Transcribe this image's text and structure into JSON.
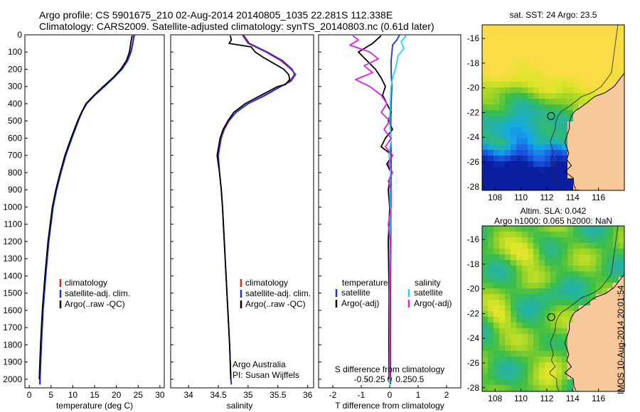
{
  "title": {
    "line1": "Argo profile: CS 5901675_210 02-Aug-2014 20140805_1035 22.281S 112.338E",
    "line2": "Climatology: CARS2009. Satellite-adjusted climatology: synTS_20140803.nc (0.61d later)"
  },
  "depth_ticks": [
    0,
    100,
    200,
    300,
    400,
    500,
    600,
    700,
    800,
    900,
    1000,
    1100,
    1200,
    1300,
    1400,
    1500,
    1600,
    1700,
    1800,
    1900,
    2000
  ],
  "colors": {
    "climatology": "#e02020",
    "satellite": "#1a2fe0",
    "argo": "#000000",
    "cyan": "#22d8e8",
    "magenta": "#e020e0",
    "land": "#f7c99a"
  },
  "chart_data": [
    {
      "type": "line",
      "panel": "temperature",
      "xlabel": "temperature (deg C)",
      "xlim": [
        -1,
        31
      ],
      "xticks": [
        0,
        5,
        10,
        15,
        20,
        25,
        30
      ],
      "ylim": [
        2050,
        0
      ],
      "legend": [
        "climatology",
        "satellite-adj. clim.",
        "Argo(..raw -QC)"
      ],
      "series": [
        {
          "name": "climatology",
          "color": "#e02020",
          "depth": [
            0,
            20,
            50,
            100,
            150,
            200,
            250,
            300,
            350,
            400,
            450,
            500,
            600,
            700,
            800,
            900,
            1000,
            1200,
            1400,
            1600,
            1800,
            2000,
            2030
          ],
          "values": [
            23.9,
            23.9,
            23.7,
            23.3,
            22.5,
            21.2,
            19.3,
            17.2,
            15.0,
            13.1,
            12.1,
            11.2,
            9.7,
            8.3,
            7.2,
            6.2,
            5.4,
            4.4,
            3.7,
            3.1,
            2.7,
            2.4,
            2.4
          ]
        },
        {
          "name": "satellite-adj. clim.",
          "color": "#1a2fe0",
          "depth": [
            0,
            20,
            50,
            100,
            150,
            200,
            250,
            300,
            350,
            400,
            450,
            500,
            600,
            700,
            800,
            900,
            1000,
            1200,
            1400,
            1600,
            1800,
            2000,
            2030
          ],
          "values": [
            24.2,
            24.0,
            23.8,
            23.4,
            22.6,
            21.3,
            19.4,
            17.3,
            15.1,
            13.2,
            12.1,
            11.3,
            9.8,
            8.4,
            7.3,
            6.3,
            5.5,
            4.5,
            3.8,
            3.2,
            2.8,
            2.5,
            2.5
          ]
        },
        {
          "name": "Argo(..raw -QC)",
          "color": "#000000",
          "depth": [
            5,
            20,
            50,
            100,
            150,
            200,
            250,
            300,
            350,
            400,
            450,
            500,
            600,
            700,
            800,
            900,
            1000,
            1200,
            1400,
            1600,
            1800,
            2000
          ],
          "values": [
            23.6,
            23.5,
            23.3,
            23.0,
            22.3,
            21.0,
            19.2,
            17.0,
            14.9,
            13.0,
            12.0,
            11.1,
            9.6,
            8.2,
            7.1,
            6.1,
            5.3,
            4.3,
            3.6,
            3.0,
            2.6,
            2.3
          ]
        }
      ]
    },
    {
      "type": "line",
      "panel": "salinity",
      "xlabel": "salinity",
      "xlim": [
        33.7,
        36.1
      ],
      "xticks": [
        34,
        34.5,
        35,
        35.5,
        36
      ],
      "ylim": [
        2050,
        0
      ],
      "legend": [
        "climatology",
        "satellite-adj. clim.",
        "Argo(..raw -QC)"
      ],
      "notes": [
        "Argo Australia",
        "PI: Susan Wijffels"
      ],
      "series": [
        {
          "name": "climatology",
          "color": "#e02020",
          "depth": [
            0,
            50,
            100,
            150,
            200,
            230,
            270,
            300,
            350,
            400,
            450,
            500,
            550,
            600,
            700,
            800,
            900,
            1000,
            1200,
            1400,
            1600,
            1800,
            2000,
            2030
          ],
          "values": [
            34.9,
            35.0,
            35.3,
            35.55,
            35.72,
            35.8,
            35.72,
            35.55,
            35.3,
            35.0,
            34.8,
            34.68,
            34.6,
            34.55,
            34.5,
            34.52,
            34.55,
            34.57,
            34.6,
            34.63,
            34.66,
            34.69,
            34.71,
            34.72
          ]
        },
        {
          "name": "satellite-adj. clim.",
          "color": "#1a2fe0",
          "depth": [
            0,
            50,
            100,
            150,
            200,
            230,
            270,
            300,
            350,
            400,
            450,
            500,
            550,
            600,
            700,
            800,
            900,
            1000,
            1200,
            1400,
            1600,
            1800,
            2000,
            2030
          ],
          "values": [
            34.92,
            35.02,
            35.32,
            35.58,
            35.74,
            35.78,
            35.7,
            35.55,
            35.28,
            35.0,
            34.8,
            34.67,
            34.59,
            34.54,
            34.5,
            34.52,
            34.55,
            34.57,
            34.6,
            34.63,
            34.66,
            34.69,
            34.71,
            34.72
          ]
        },
        {
          "name": "Argo(..raw -QC)",
          "color": "#000000",
          "depth": [
            5,
            30,
            50,
            70,
            100,
            130,
            170,
            200,
            230,
            260,
            290,
            300,
            350,
            400,
            450,
            500,
            550,
            600,
            700,
            800,
            900,
            1000,
            1200,
            1400,
            1600,
            1800,
            2000
          ],
          "values": [
            34.7,
            34.72,
            34.68,
            35.05,
            35.12,
            35.25,
            35.45,
            35.6,
            35.68,
            35.7,
            35.62,
            35.5,
            35.22,
            34.95,
            34.76,
            34.66,
            34.58,
            34.53,
            34.48,
            34.52,
            34.55,
            34.57,
            34.6,
            34.63,
            34.66,
            34.69,
            34.71
          ]
        }
      ]
    },
    {
      "type": "line",
      "panel": "difference",
      "xlabel": "T difference from climatology",
      "xlabel_top": "S difference from climatology",
      "xlim": [
        -2.5,
        2.5
      ],
      "xticks_T": [
        -2,
        -1,
        0,
        1,
        2
      ],
      "xticks_S": [
        "-0.5",
        "-0.25",
        "0",
        "0.25",
        "0.5"
      ],
      "ylim": [
        2050,
        0
      ],
      "legend_t": {
        "heading": "temperature",
        "items": [
          "satellite",
          "Argo(-adj)"
        ]
      },
      "legend_s": {
        "heading": "salinity",
        "items": [
          "satellite",
          "Argo(-adj)"
        ]
      },
      "series": [
        {
          "name": "T satellite",
          "color": "#1a2fe0",
          "depth": [
            0,
            30,
            60,
            100,
            150,
            200,
            250,
            300,
            400,
            500,
            600,
            700,
            800,
            1000,
            1200,
            1500,
            1800,
            2030
          ],
          "values": [
            0.35,
            0.25,
            0.1,
            0.08,
            0.05,
            0.05,
            0.06,
            0.08,
            0.05,
            0.04,
            0.04,
            0.05,
            0.05,
            0.04,
            0.04,
            0.03,
            0.03,
            0.03
          ]
        },
        {
          "name": "T Argo(-adj)",
          "color": "#000000",
          "depth": [
            5,
            50,
            100,
            150,
            200,
            250,
            300,
            350,
            400,
            450,
            500,
            550,
            600,
            650,
            700,
            750,
            800,
            900,
            1000,
            1200,
            1500,
            1800,
            2000
          ],
          "values": [
            -0.3,
            -0.6,
            -1.1,
            -0.8,
            -0.5,
            -0.3,
            -0.15,
            -0.25,
            -0.1,
            0.05,
            -0.05,
            0.1,
            -0.15,
            -0.3,
            0.1,
            -0.1,
            0.05,
            -0.05,
            0.0,
            -0.05,
            -0.02,
            -0.03,
            -0.02
          ]
        },
        {
          "name": "S satellite",
          "color": "#22d8e8",
          "depth": [
            0,
            40,
            80,
            120,
            160,
            200,
            250,
            300,
            400,
            500,
            600,
            700,
            800,
            900,
            1000,
            1200,
            1500,
            1800,
            2030
          ],
          "values": [
            0.6,
            0.4,
            0.5,
            0.3,
            0.25,
            0.2,
            0.1,
            0.05,
            0.02,
            0.0,
            0.05,
            -0.02,
            0.03,
            0.0,
            0.02,
            0.01,
            0.0,
            0.0,
            0.0
          ]
        },
        {
          "name": "S Argo(-adj)",
          "color": "#e020e0",
          "depth": [
            5,
            30,
            60,
            100,
            140,
            180,
            220,
            260,
            300,
            350,
            400,
            450,
            500,
            550,
            600,
            650,
            700,
            750,
            800,
            850,
            900,
            1000,
            1100,
            1200,
            1300,
            1500,
            1800,
            2000
          ],
          "values": [
            -1.3,
            -1.1,
            -1.4,
            -0.7,
            -0.4,
            -0.9,
            -0.6,
            -1.2,
            -0.7,
            -0.3,
            -0.1,
            -0.3,
            0.0,
            -0.2,
            0.05,
            -0.15,
            0.1,
            -0.05,
            0.1,
            -0.05,
            0.05,
            0.05,
            -0.05,
            0.02,
            0.03,
            0.0,
            0.0,
            0.0
          ]
        }
      ]
    },
    {
      "type": "heatmap",
      "panel": "sst-map",
      "title": "sat. SST: 24 Argo: 23.5",
      "xticks": [
        108,
        110,
        112,
        114,
        116
      ],
      "yticks": [
        -16,
        -18,
        -20,
        -22,
        -24,
        -26,
        -28
      ],
      "xlim": [
        107,
        118
      ],
      "ylim": [
        -28.3,
        -14.9
      ],
      "float_position": [
        112.338,
        -22.281
      ]
    },
    {
      "type": "heatmap",
      "panel": "sla-map",
      "title_line1": "Altim. SLA: 0.042",
      "title_line2": "Argo h1000: 0.065 h2000: NaN",
      "xticks": [
        108,
        110,
        112,
        114,
        116
      ],
      "yticks": [
        -16,
        -18,
        -20,
        -22,
        -24,
        -26,
        -28
      ],
      "xlim": [
        107,
        118
      ],
      "ylim": [
        -28.3,
        -14.9
      ],
      "float_position": [
        112.338,
        -22.281
      ]
    }
  ],
  "stamp": "IMOS 10-Aug-2014 20:01:54"
}
